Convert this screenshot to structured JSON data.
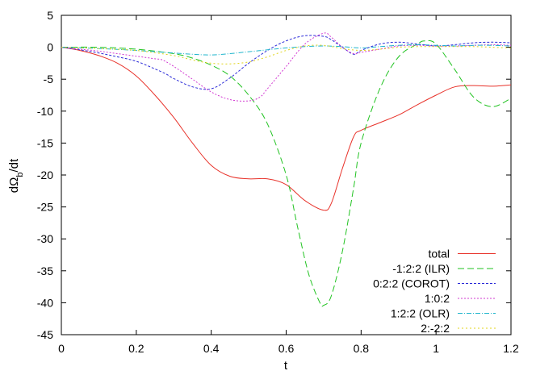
{
  "chart_data": {
    "type": "line",
    "xlabel": "t",
    "ylabel": "dΩb/dt",
    "ylabel_main": "dΩ",
    "ylabel_sub": "b",
    "ylabel_tail": "/dt",
    "xlim": [
      0,
      1.2
    ],
    "ylim": [
      -45,
      5
    ],
    "xticks": [
      "0",
      "0.2",
      "0.4",
      "0.6",
      "0.8",
      "1",
      "1.2"
    ],
    "yticks": [
      "5",
      "0",
      "-5",
      "-10",
      "-15",
      "-20",
      "-25",
      "-30",
      "-35",
      "-40",
      "-45"
    ],
    "grid": false,
    "legend_position": "bottom-right",
    "series": [
      {
        "name": "total",
        "color": "#e8322a",
        "dash": "solid",
        "x": [
          0,
          0.05,
          0.1,
          0.15,
          0.2,
          0.25,
          0.3,
          0.35,
          0.4,
          0.45,
          0.5,
          0.55,
          0.6,
          0.65,
          0.7,
          0.72,
          0.75,
          0.78,
          0.8,
          0.85,
          0.9,
          0.95,
          1.0,
          1.05,
          1.1,
          1.15,
          1.2
        ],
        "y": [
          0,
          -0.5,
          -1.3,
          -2.5,
          -4.5,
          -7.5,
          -11,
          -15,
          -18.5,
          -20.2,
          -20.6,
          -20.6,
          -21.5,
          -24,
          -25.5,
          -24.5,
          -19,
          -14,
          -13,
          -11.8,
          -10.6,
          -9,
          -7.5,
          -6.2,
          -6.0,
          -6.1,
          -5.9
        ]
      },
      {
        "name": "-1:2:2 (ILR)",
        "color": "#22c322",
        "dash": "8,4",
        "x": [
          0,
          0.1,
          0.2,
          0.3,
          0.35,
          0.4,
          0.45,
          0.5,
          0.55,
          0.6,
          0.63,
          0.66,
          0.69,
          0.7,
          0.72,
          0.75,
          0.78,
          0.8,
          0.85,
          0.9,
          0.95,
          0.97,
          1.0,
          1.05,
          1.1,
          1.15,
          1.2
        ],
        "y": [
          0,
          0,
          -0.3,
          -1.0,
          -1.7,
          -2.8,
          -4.5,
          -7.5,
          -12,
          -20,
          -28,
          -35.5,
          -40,
          -40.4,
          -39,
          -32,
          -22,
          -15,
          -6.5,
          -1.5,
          0.5,
          1.0,
          0.5,
          -3.5,
          -7.8,
          -9.3,
          -8.0
        ]
      },
      {
        "name": "0:2:2 (COROT)",
        "color": "#2b2bd8",
        "dash": "3,2",
        "x": [
          0,
          0.05,
          0.1,
          0.15,
          0.2,
          0.25,
          0.28,
          0.3,
          0.35,
          0.4,
          0.45,
          0.5,
          0.55,
          0.6,
          0.65,
          0.7,
          0.72,
          0.75,
          0.78,
          0.8,
          0.85,
          0.9,
          0.95,
          1.0,
          1.05,
          1.1,
          1.15,
          1.2
        ],
        "y": [
          0,
          -0.4,
          -0.9,
          -1.5,
          -2.2,
          -3.4,
          -4.2,
          -4.9,
          -6.2,
          -6.5,
          -4.8,
          -2.5,
          -0.5,
          1.0,
          1.8,
          1.7,
          1.2,
          0,
          -1.1,
          -0.5,
          0.5,
          0.8,
          0.5,
          0.2,
          0.4,
          0.7,
          0.8,
          0.7
        ]
      },
      {
        "name": "1:0:2",
        "color": "#d23ad2",
        "dash": "2,2",
        "x": [
          0,
          0.05,
          0.1,
          0.15,
          0.2,
          0.25,
          0.27,
          0.3,
          0.35,
          0.4,
          0.45,
          0.5,
          0.53,
          0.55,
          0.6,
          0.65,
          0.7,
          0.72,
          0.75,
          0.78,
          0.8,
          0.85,
          0.9,
          0.95,
          1.0,
          1.05,
          1.1,
          1.15,
          1.2
        ],
        "y": [
          0,
          -0.3,
          -0.6,
          -1.0,
          -1.4,
          -1.8,
          -2.0,
          -3.0,
          -5.0,
          -7.0,
          -8.2,
          -8.4,
          -7.8,
          -6.5,
          -3.0,
          0.5,
          2.2,
          1.6,
          0,
          -1.0,
          -0.8,
          -0.3,
          0.2,
          0.3,
          0.2,
          0.2,
          0.3,
          0.4,
          0.3
        ]
      },
      {
        "name": "1:2:2 (OLR)",
        "color": "#1fb5cc",
        "dash": "6,2,1,2",
        "x": [
          0,
          0.1,
          0.2,
          0.3,
          0.35,
          0.4,
          0.45,
          0.5,
          0.55,
          0.6,
          0.65,
          0.7,
          0.75,
          0.8,
          0.85,
          0.9,
          0.95,
          1.0,
          1.05,
          1.1,
          1.15,
          1.2
        ],
        "y": [
          0,
          -0.2,
          -0.5,
          -0.9,
          -1.1,
          -1.2,
          -1.0,
          -0.7,
          -0.4,
          -0.1,
          0.1,
          0.2,
          0.1,
          -0.1,
          0.1,
          0.3,
          0.4,
          0.3,
          0.2,
          0.3,
          0.3,
          0.2
        ]
      },
      {
        "name": "2:-2:2",
        "color": "#e0d418",
        "dash": "2,3",
        "x": [
          0,
          0.1,
          0.2,
          0.3,
          0.35,
          0.4,
          0.45,
          0.5,
          0.55,
          0.6,
          0.65,
          0.7,
          0.75,
          0.8,
          0.85,
          0.9,
          0.95,
          1.0,
          1.05,
          1.1,
          1.15,
          1.2
        ],
        "y": [
          0,
          -0.2,
          -0.5,
          -1.3,
          -2.0,
          -2.5,
          -2.6,
          -2.3,
          -1.5,
          -0.5,
          0.2,
          0.3,
          -0.2,
          -0.5,
          -0.3,
          0,
          0.1,
          0.1,
          0.1,
          0.1,
          0,
          -0.1
        ]
      }
    ]
  }
}
